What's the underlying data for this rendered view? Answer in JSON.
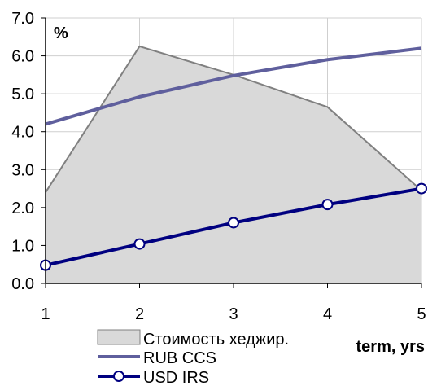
{
  "chart_data": {
    "type": "line",
    "unit_label": "%",
    "xlabel": "term, yrs",
    "ylabel": "",
    "x": [
      1,
      2,
      3,
      4,
      5
    ],
    "xlim": [
      1,
      5
    ],
    "ylim": [
      0,
      7
    ],
    "x_tick_labels": [
      "1",
      "2",
      "3",
      "4",
      "5"
    ],
    "y_tick_labels": [
      "0.0",
      "1.0",
      "2.0",
      "3.0",
      "4.0",
      "5.0",
      "6.0",
      "7.0"
    ],
    "grid": true,
    "legend_position": "bottom",
    "series": [
      {
        "name": "Стоимость хеджир.",
        "kind": "area",
        "values": [
          2.4,
          6.25,
          5.5,
          4.65,
          2.45
        ],
        "color": "#d9d9d9",
        "stroke": "#808080"
      },
      {
        "name": "RUB CCS",
        "kind": "line",
        "values": [
          4.2,
          4.92,
          5.48,
          5.9,
          6.2
        ],
        "color": "#5f5f9d"
      },
      {
        "name": "USD IRS",
        "kind": "line-markers",
        "values": [
          0.48,
          1.04,
          1.6,
          2.08,
          2.5
        ],
        "color": "#000080"
      }
    ]
  }
}
